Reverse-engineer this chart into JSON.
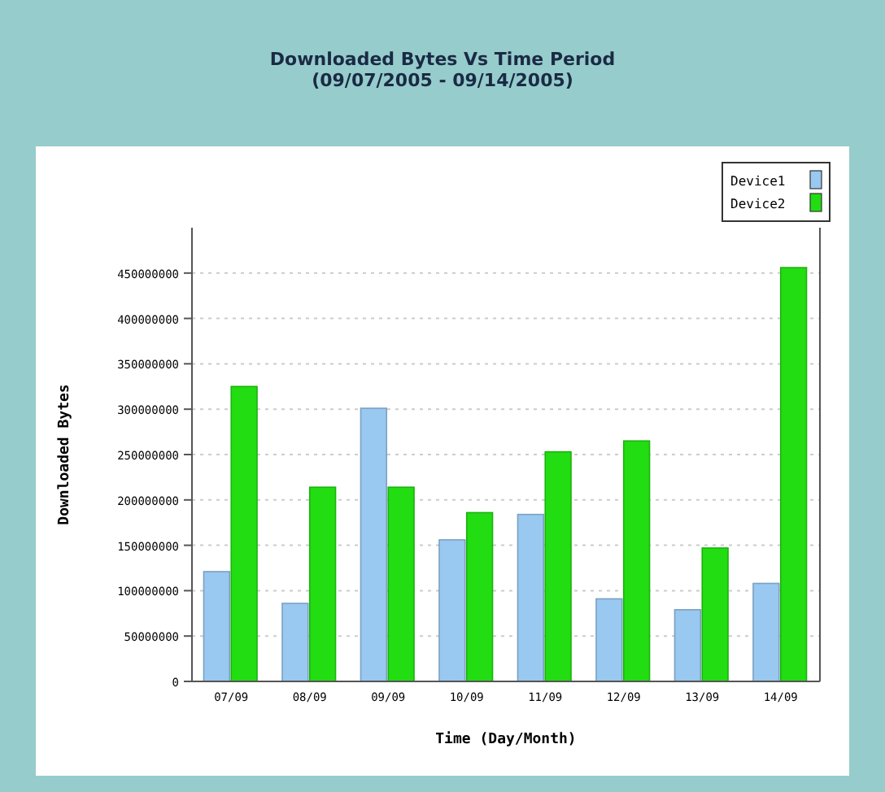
{
  "chart_data": {
    "type": "bar",
    "title": "Downloaded Bytes Vs Time Period",
    "subtitle": "(09/07/2005 - 09/14/2005)",
    "xlabel": "Time (Day/Month)",
    "ylabel": "Downloaded Bytes",
    "categories": [
      "07/09",
      "08/09",
      "09/09",
      "10/09",
      "11/09",
      "12/09",
      "13/09",
      "14/09"
    ],
    "series": [
      {
        "name": "Device1",
        "color": "#99c8f0",
        "values": [
          121000000,
          86000000,
          301000000,
          156000000,
          184000000,
          91000000,
          79000000,
          108000000
        ]
      },
      {
        "name": "Device2",
        "color": "#22dd11",
        "values": [
          325000000,
          214000000,
          214000000,
          186000000,
          253000000,
          265000000,
          147000000,
          456000000
        ]
      }
    ],
    "ylim": [
      0,
      500000000
    ],
    "yticks": [
      0,
      50000000,
      100000000,
      150000000,
      200000000,
      250000000,
      300000000,
      350000000,
      400000000,
      450000000
    ],
    "grid": "y",
    "legend": "top right"
  }
}
